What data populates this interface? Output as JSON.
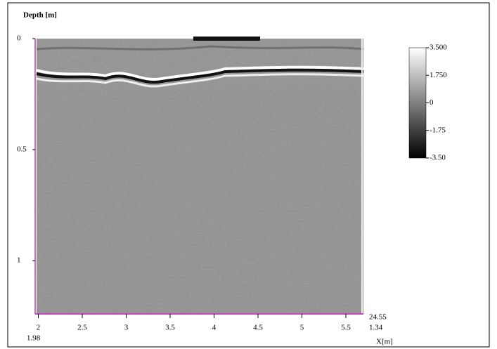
{
  "chart_data": {
    "type": "radargram",
    "y_label": "Depth [m]",
    "x_label": "X[m]",
    "xlim": [
      1.98,
      5.7
    ],
    "xticks": [
      2,
      2.5,
      3,
      3.5,
      4,
      4.5,
      5,
      5.5
    ],
    "ylim": [
      0,
      1.24
    ],
    "yticks": [
      0,
      0.5,
      1
    ],
    "clim": [
      -3.5,
      3.5
    ],
    "cticks": [
      {
        "value": 3.5,
        "label": "3.500"
      },
      {
        "value": 1.75,
        "label": "1.750"
      },
      0,
      {
        "value": -1.75,
        "label": "-1.75"
      },
      {
        "value": -3.5,
        "label": "-3.50"
      }
    ],
    "readouts": [
      {
        "value": 24.55,
        "color": "#b03030"
      },
      {
        "value": 1.34,
        "color": "#3a8a2a"
      }
    ],
    "x_start_color": "#b03030",
    "axis_color": "#c040c0"
  }
}
